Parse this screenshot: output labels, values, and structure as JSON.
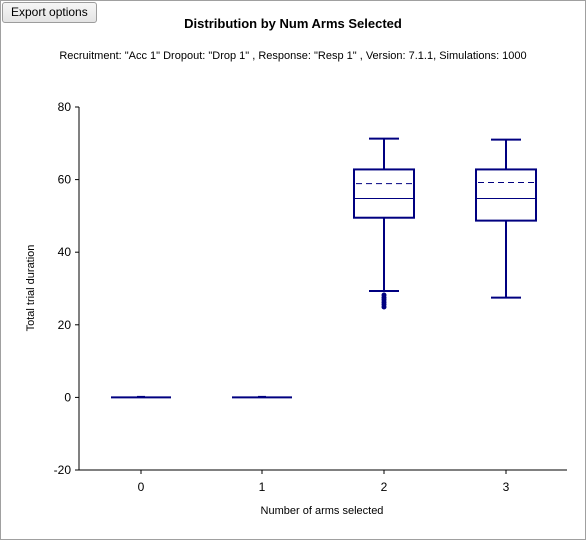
{
  "toolbar": {
    "export_label": "Export options"
  },
  "chart_data": {
    "type": "box",
    "title": "Distribution by Num Arms Selected",
    "subtitle": "Recruitment: \"Acc 1\" Dropout: \"Drop 1\" , Response: \"Resp 1\" , Version: 7.1.1, Simulations: 1000",
    "xlabel": "Number of arms selected",
    "ylabel": "Total trial duration",
    "ylim": [
      -20,
      80
    ],
    "yticks": [
      -20,
      0,
      20,
      40,
      60,
      80
    ],
    "categories": [
      "0",
      "1",
      "2",
      "3"
    ],
    "boxes": [
      {
        "category": "0",
        "whisker_low": 0,
        "q1": 0,
        "median": 0,
        "mean": 0,
        "q3": 0,
        "whisker_high": 0,
        "outliers": []
      },
      {
        "category": "1",
        "whisker_low": 0,
        "q1": 0,
        "median": 0,
        "mean": 0,
        "q3": 0,
        "whisker_high": 0,
        "outliers": []
      },
      {
        "category": "2",
        "whisker_low": 29.3,
        "q1": 49.5,
        "median": 54.8,
        "mean": 58.9,
        "q3": 62.8,
        "whisker_high": 71.3,
        "outliers": [
          28.2,
          27.5,
          26.9,
          26.2,
          25.6,
          24.9
        ]
      },
      {
        "category": "3",
        "whisker_low": 27.5,
        "q1": 48.7,
        "median": 54.8,
        "mean": 59.2,
        "q3": 62.8,
        "whisker_high": 71.0,
        "outliers": []
      }
    ],
    "color": "#000080",
    "grid": false,
    "legend": "none"
  }
}
